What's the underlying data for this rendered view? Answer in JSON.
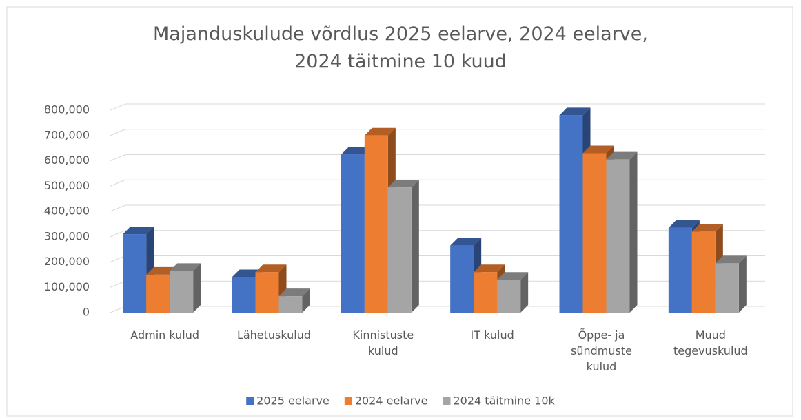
{
  "chart_data": {
    "type": "bar3d",
    "title": "Majanduskulude võrdlus 2025 eelarve, 2024 eelarve, 2024 täitmine 10 kuud",
    "categories": [
      "Admin kulud",
      "Lähetuskulud",
      "Kinnistuste kulud",
      "IT kulud",
      "Õppe- ja sündmuste kulud",
      "Muud tegevuskulud"
    ],
    "series": [
      {
        "name": "2025 eelarve",
        "color": "#4472c4",
        "values": [
          310000,
          140000,
          625000,
          265000,
          780000,
          335000
        ]
      },
      {
        "name": "2024 eelarve",
        "color": "#ed7d31",
        "values": [
          150000,
          160000,
          700000,
          160000,
          630000,
          320000
        ]
      },
      {
        "name": "2024 täitmine 10k",
        "color": "#a5a5a5",
        "values": [
          165000,
          65000,
          495000,
          130000,
          605000,
          195000
        ]
      }
    ],
    "ylim": [
      0,
      800000
    ],
    "yticks": [
      0,
      {
        "value": 100000,
        "label": "100,000"
      },
      {
        "value": 200000,
        "label": "200,000"
      },
      {
        "value": 300000,
        "label": "300,000"
      },
      {
        "value": 400000,
        "label": "400,000"
      },
      {
        "value": 500000,
        "label": "500,000"
      },
      {
        "value": 600000,
        "label": "600,000"
      },
      {
        "value": 700000,
        "label": "700,000"
      },
      {
        "value": 800000,
        "label": "800,000"
      }
    ],
    "grid": true,
    "legend": "bottom"
  }
}
